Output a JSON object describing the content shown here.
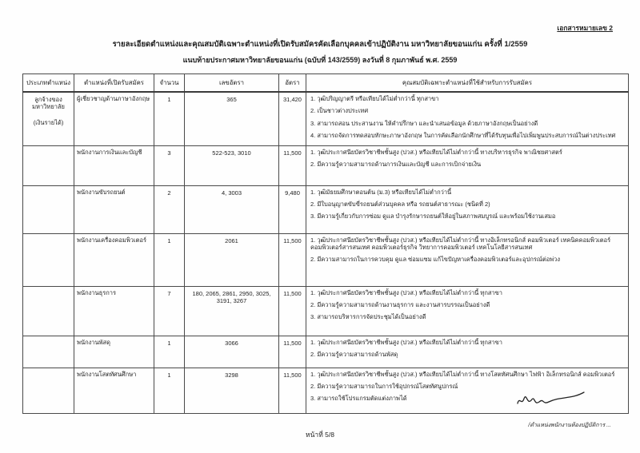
{
  "doc": {
    "doc_number": "เอกสารหมายเลข 2",
    "title": "รายละเอียดตำแหน่งและคุณสมบัติเฉพาะตำแหน่งที่เปิดรับสมัครคัดเลือกบุคคลเข้าปฏิบัติงาน มหาวิทยาลัยขอนแก่น ครั้งที่ 1/2559",
    "subtitle": "แนบท้ายประกาศมหาวิทยาลัยขอนแก่น (ฉบับที่ 143/2559) ลงวันที่ 8 กุมภาพันธ์ พ.ศ. 2559",
    "page_number": "หน้าที่ 5/8",
    "continuation_note": "/ตำแหน่งพนักงานห้องปฏิบัติการ ..."
  },
  "table": {
    "headers": [
      "ประเภทตำแหน่ง",
      "ตำแหน่งที่เปิดรับสมัคร",
      "จำนวน",
      "เลขอัตรา",
      "อัตรา",
      "คุณสมบัติเฉพาะตำแหน่งที่ใช้สำหรับการรับสมัคร"
    ],
    "category": {
      "line1": "ลูกจ้างของมหาวิทยาลัย",
      "line2": "(เงินรายได้)"
    },
    "rows": [
      {
        "position": "ผู้เชี่ยวชาญด้านภาษาอังกฤษ",
        "count": "1",
        "position_numbers": "365",
        "salary": "31,420",
        "qualifications": [
          "1. วุฒิปริญญาตรี หรือเทียบได้ไม่ต่ำกว่านี้ ทุกสาขา",
          "2. เป็นชาวต่างประเทศ",
          "3. สามารถสอน ประสานงาน ให้คำปรึกษา และนำเสนอข้อมูล ด้วยภาษาอังกฤษเป็นอย่างดี",
          "4. สามารถจัดการทดสอบทักษะภาษาอังกฤษ ในการคัดเลือกนักศึกษาที่ได้รับทุนเพื่อไปเพิ่มพูนประสบการณ์ในต่างประเทศ"
        ]
      },
      {
        "position": "พนักงานการเงินและบัญชี",
        "count": "3",
        "position_numbers": "522-523, 3010",
        "salary": "11,500",
        "qualifications": [
          "1. วุฒิประกาศนียบัตรวิชาชีพชั้นสูง (ปวส.) หรือเทียบได้ไม่ต่ำกว่านี้ ทางบริหารธุรกิจ พาณิชยศาสตร์",
          "2. มีความรู้ความสามารถด้านการเงินและบัญชี และการเบิกจ่ายเงิน"
        ]
      },
      {
        "position": "พนักงานขับรถยนต์",
        "count": "2",
        "position_numbers": "4, 3003",
        "salary": "9,480",
        "qualifications": [
          "1. วุฒิมัธยมศึกษาตอนต้น (ม.3) หรือเทียบได้ไม่ต่ำกว่านี้",
          "2. มีใบอนุญาตขับขี่รถยนต์ส่วนบุคคล หรือ รถยนต์สาธารณะ (ชนิดที่ 2)",
          "3. มีความรู้เกี่ยวกับการซ่อม ดูแล บำรุงรักษารถยนต์ให้อยู่ในสภาพสมบูรณ์ และพร้อมใช้งานเสมอ"
        ]
      },
      {
        "position": "พนักงานเครื่องคอมพิวเตอร์",
        "count": "1",
        "position_numbers": "2061",
        "salary": "11,500",
        "qualifications": [
          "1. วุฒิประกาศนียบัตรวิชาชีพชั้นสูง (ปวส.) หรือเทียบได้ไม่ต่ำกว่านี้ ทางอิเล็กทรอนิกส์ คอมพิวเตอร์ เทคนิคคอมพิวเตอร์ คอมพิวเตอร์สารสนเทศ คอมพิวเตอร์ธุรกิจ วิทยาการคอมพิวเตอร์ เทคโนโลยีสารสนเทศ",
          "2. มีความสามารถในการควบคุม ดูแล ซ่อมแซม แก้ไขปัญหาเครื่องคอมพิวเตอร์และอุปกรณ์ต่อพ่วง"
        ]
      },
      {
        "position": "พนักงานธุรการ",
        "count": "7",
        "position_numbers": "180, 2065, 2861, 2950, 3025, 3191, 3267",
        "salary": "11,500",
        "qualifications": [
          "1. วุฒิประกาศนียบัตรวิชาชีพชั้นสูง (ปวส.) หรือเทียบได้ไม่ต่ำกว่านี้ ทุกสาขา",
          "2. มีความรู้ความสามารถด้านงานธุรการ และงานสารบรรณเป็นอย่างดี",
          "3. สามารถบริหารการจัดประชุมได้เป็นอย่างดี"
        ]
      },
      {
        "position": "พนักงานพัสดุ",
        "count": "1",
        "position_numbers": "3066",
        "salary": "11,500",
        "qualifications": [
          "1. วุฒิประกาศนียบัตรวิชาชีพชั้นสูง (ปวส.) หรือเทียบได้ไม่ต่ำกว่านี้ ทุกสาขา",
          "2. มีความรู้ความสามารถด้านพัสดุ"
        ]
      },
      {
        "position": "พนักงานโสตทัศนศึกษา",
        "count": "1",
        "position_numbers": "3298",
        "salary": "11,500",
        "qualifications": [
          "1. วุฒิประกาศนียบัตรวิชาชีพชั้นสูง (ปวส.) หรือเทียบได้ไม่ต่ำกว่านี้ ทางโสตทัศนศึกษา ไฟฟ้า อิเล็กทรอนิกส์ คอมพิวเตอร์",
          "2. มีความรู้ความสามารถในการใช้อุปกรณ์โสตทัศนูปกรณ์",
          "3. สามารถใช้โปรแกรมตัดแต่งภาพได้"
        ]
      }
    ]
  },
  "colors": {
    "ink": "#1f1f1f",
    "border": "#4a4a4a",
    "paper": "#fefefe"
  }
}
